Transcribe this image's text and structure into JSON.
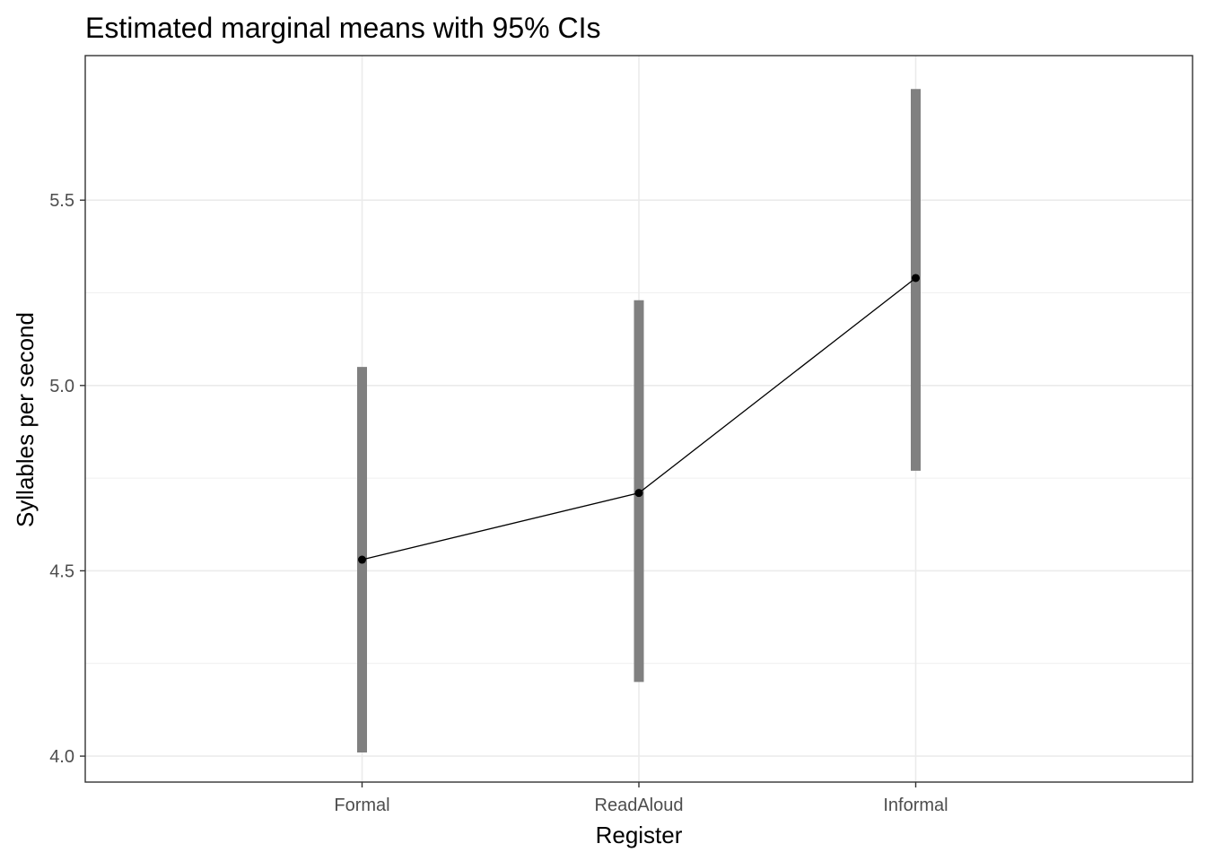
{
  "chart_data": {
    "type": "line",
    "title": "Estimated marginal means with 95% CIs",
    "xlabel": "Register",
    "ylabel": "Syllables per second",
    "categories": [
      "Formal",
      "ReadAloud",
      "Informal"
    ],
    "series": [
      {
        "values": [
          4.53,
          4.71,
          5.29
        ],
        "ci_lower": [
          4.01,
          4.2,
          4.77
        ],
        "ci_upper": [
          5.05,
          5.23,
          5.8
        ]
      }
    ],
    "ylim": [
      3.93,
      5.89
    ],
    "y_ticks": [
      4.0,
      4.5,
      5.0,
      5.5
    ],
    "y_tick_labels": [
      "4.0",
      "4.5",
      "5.0",
      "5.5"
    ],
    "grid": true,
    "legend": "none",
    "colors": {
      "panel_border": "#333333",
      "grid": "#ebebeb",
      "ci_bar": "#808080",
      "line": "#000000",
      "point": "#000000",
      "tick_label": "#4d4d4d"
    }
  }
}
